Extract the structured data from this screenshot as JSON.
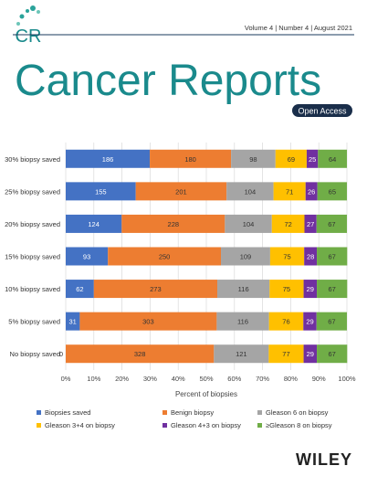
{
  "cover": {
    "logo": "CR",
    "issue": "Volume 4 | Number 4 | August 2021",
    "journal": "Cancer Reports",
    "access": "Open Access",
    "publisher": "WILEY"
  },
  "chart_data": {
    "type": "stacked-bar-horizontal",
    "x_label": "Percent of biopsies",
    "categories": [
      "30% biopsy saved",
      "25% biopsy saved",
      "20% biopsy saved",
      "15% biopsy saved",
      "10% biopsy saved",
      "5% biopsy saved",
      "No biopsy saved"
    ],
    "series": [
      {
        "name": "Biopsies saved",
        "color": "#4472c4",
        "values": [
          29.9,
          24.9,
          19.9,
          15.0,
          10.0,
          5.0,
          0
        ],
        "value_labels": [
          "186",
          "155",
          "124",
          "93",
          "62",
          "31",
          "0"
        ]
      },
      {
        "name": "Benign biopsy",
        "color": "#ed7d31",
        "values": [
          28.9,
          32.3,
          36.7,
          40.2,
          43.9,
          48.7,
          52.7
        ],
        "value_labels": [
          "180",
          "201",
          "228",
          "250",
          "273",
          "303",
          "328"
        ]
      },
      {
        "name": "Gleason 6 on biopsy",
        "color": "#a5a5a5",
        "values": [
          15.8,
          16.7,
          16.7,
          17.5,
          18.6,
          18.6,
          19.5
        ],
        "value_labels": [
          "98",
          "104",
          "104",
          "109",
          "116",
          "116",
          "121"
        ]
      },
      {
        "name": "Gleason 3+4 on biopsy",
        "color": "#ffc000",
        "values": [
          11.1,
          11.4,
          11.6,
          12.1,
          12.1,
          12.2,
          12.4
        ],
        "value_labels": [
          "69",
          "71",
          "72",
          "75",
          "75",
          "76",
          "77"
        ]
      },
      {
        "name": "Gleason 4+3 on biopsy",
        "color": "#7030a0",
        "values": [
          4.0,
          4.2,
          4.3,
          4.5,
          4.7,
          4.7,
          4.7
        ],
        "value_labels": [
          "25",
          "26",
          "27",
          "28",
          "29",
          "29",
          "29"
        ]
      },
      {
        "name": "≥Gleason 8 on biopsy",
        "color": "#70ad47",
        "values": [
          10.3,
          10.5,
          10.8,
          10.8,
          10.8,
          10.8,
          10.8
        ],
        "value_labels": [
          "64",
          "65",
          "67",
          "67",
          "67",
          "67",
          "67"
        ]
      }
    ],
    "xlim": [
      0,
      100
    ],
    "xticks": [
      {
        "value": 0,
        "label": "0%"
      },
      {
        "value": 10,
        "label": "10%"
      },
      {
        "value": 20,
        "label": "20%"
      },
      {
        "value": 30,
        "label": "30%"
      },
      {
        "value": 40,
        "label": "40%"
      },
      {
        "value": 50,
        "label": "50%"
      },
      {
        "value": 60,
        "label": "60%"
      },
      {
        "value": 70,
        "label": "70%"
      },
      {
        "value": 80,
        "label": "80%"
      },
      {
        "value": 90,
        "label": "90%"
      },
      {
        "value": 100,
        "label": "100%"
      }
    ],
    "grid": true
  }
}
